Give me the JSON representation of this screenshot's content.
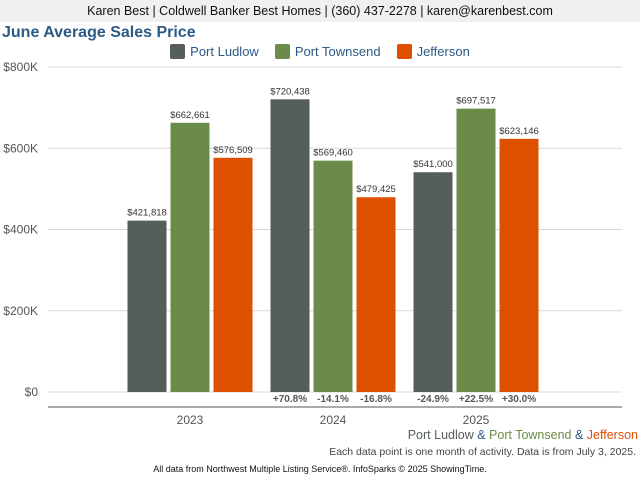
{
  "header": {
    "text": "Karen Best | Coldwell Banker Best Homes | (360) 437-2278 | karen@karenbest.com"
  },
  "colors": {
    "Port Ludlow": "#565e5b",
    "Port Townsend": "#6a8c48",
    "Jefferson": "#de4f00",
    "title": "#2c5a86"
  },
  "chart_data": {
    "type": "bar",
    "title": "June Average Sales Price",
    "categories": [
      "2023",
      "2024",
      "2025"
    ],
    "series": [
      {
        "name": "Port Ludlow",
        "values": [
          421818,
          720438,
          541000
        ],
        "labels": [
          "$421,818",
          "$720,438",
          "$541,000"
        ]
      },
      {
        "name": "Port Townsend",
        "values": [
          662661,
          569460,
          697517
        ],
        "labels": [
          "$662,661",
          "$569,460",
          "$697,517"
        ]
      },
      {
        "name": "Jefferson",
        "values": [
          576509,
          479425,
          623146
        ],
        "labels": [
          "$576,509",
          "$479,425",
          "$623,146"
        ]
      }
    ],
    "change_labels": [
      [
        "",
        "",
        ""
      ],
      [
        "+70.8%",
        "-14.1%",
        "-16.8%"
      ],
      [
        "-24.9%",
        "+22.5%",
        "+30.0%"
      ]
    ],
    "ylim": [
      0,
      800000
    ],
    "yticks": [
      0,
      200000,
      400000,
      600000,
      800000
    ],
    "ytick_labels": [
      "$0",
      "$200K",
      "$400K",
      "$600K",
      "$800K"
    ],
    "grid": true,
    "legend": "top-center"
  },
  "footer": {
    "legend_parts": [
      "Port Ludlow",
      " & ",
      "Port Townsend",
      " & ",
      "Jefferson"
    ],
    "note": "Each data point is one month of activity. Data is from July 3, 2025.",
    "source": "All data from Northwest Multiple Listing Service®. InfoSparks © 2025 ShowingTime."
  }
}
